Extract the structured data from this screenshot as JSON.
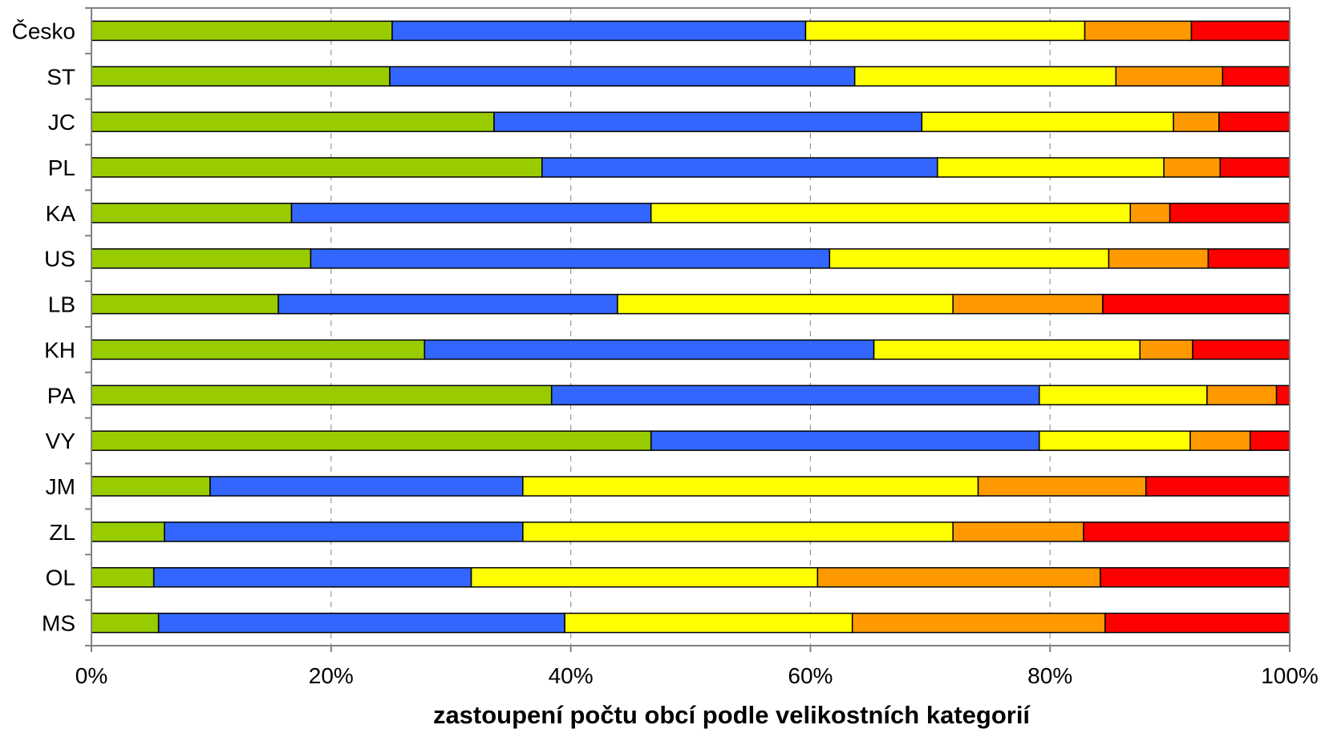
{
  "chart_data": {
    "type": "bar",
    "orientation": "horizontal",
    "stacked": "percent",
    "title": "",
    "xlabel": "zastoupení počtu obcí podle velikostních kategorií",
    "ylabel": "",
    "xlim": [
      0,
      100
    ],
    "x_ticks": [
      "0%",
      "20%",
      "40%",
      "60%",
      "80%",
      "100%"
    ],
    "x_tick_values": [
      0,
      20,
      40,
      60,
      80,
      100
    ],
    "grid": "vertical dashed",
    "legend": "none",
    "categories": [
      "Česko",
      "ST",
      "JC",
      "PL",
      "KA",
      "US",
      "LB",
      "KH",
      "PA",
      "VY",
      "JM",
      "ZL",
      "OL",
      "MS"
    ],
    "series": [
      {
        "color": "#99CC00",
        "values": [
          25.1,
          24.9,
          33.6,
          37.6,
          16.7,
          18.3,
          15.6,
          27.8,
          38.4,
          46.7,
          9.9,
          6.1,
          5.2,
          5.6
        ]
      },
      {
        "color": "#3366FF",
        "values": [
          34.5,
          38.8,
          35.7,
          33.0,
          30.0,
          43.3,
          28.3,
          37.5,
          40.7,
          32.4,
          26.1,
          29.9,
          26.5,
          33.9
        ]
      },
      {
        "color": "#FFFF00",
        "values": [
          23.3,
          21.8,
          21.0,
          18.9,
          40.0,
          23.3,
          28.0,
          22.2,
          14.0,
          12.6,
          38.0,
          35.9,
          28.9,
          24.0
        ]
      },
      {
        "color": "#FF9900",
        "values": [
          8.9,
          8.9,
          3.8,
          4.7,
          3.3,
          8.3,
          12.5,
          4.4,
          5.8,
          5.0,
          14.0,
          10.9,
          23.6,
          21.1
        ]
      },
      {
        "color": "#FF0000",
        "values": [
          8.2,
          5.6,
          5.9,
          5.8,
          10.0,
          6.8,
          15.6,
          8.1,
          1.1,
          3.3,
          12.0,
          17.2,
          15.8,
          15.4
        ]
      }
    ]
  }
}
